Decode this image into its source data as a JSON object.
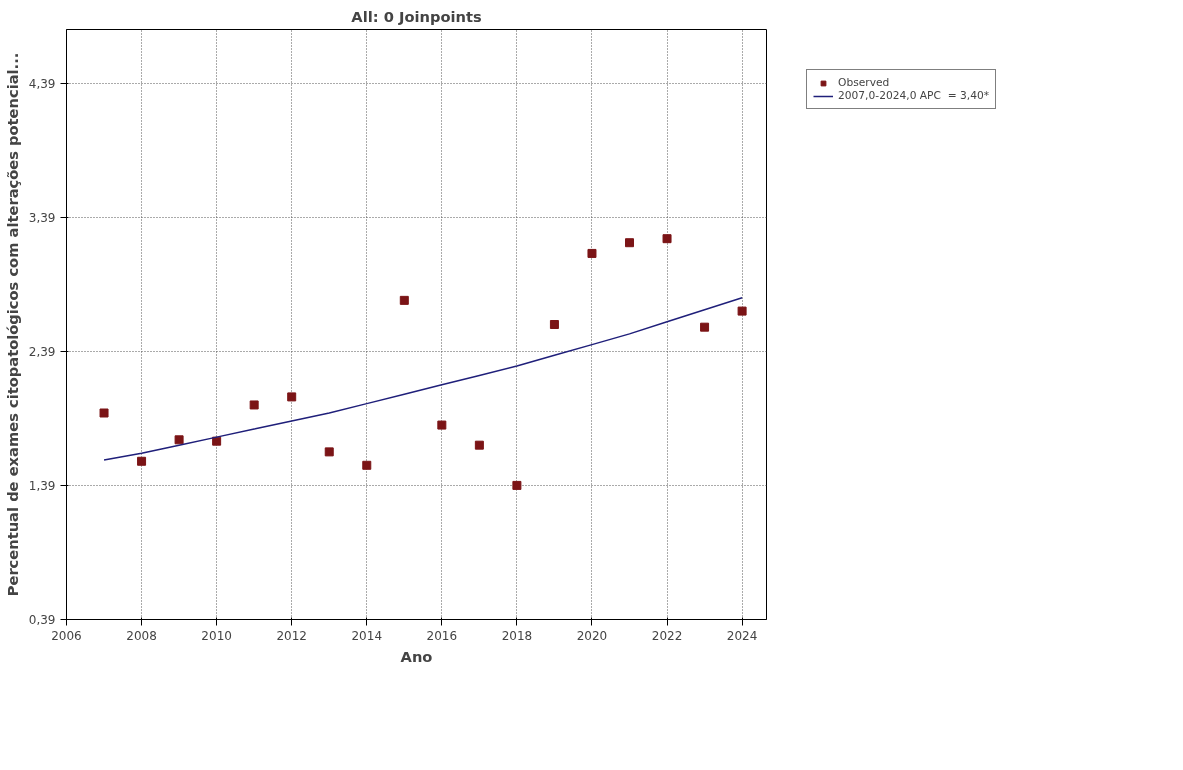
{
  "chart_data": {
    "type": "scatter",
    "title": "All: 0 Joinpoints",
    "xlabel": "Ano",
    "ylabel": "Percentual de exames citopatológicos com alterações potencial...",
    "x": [
      2007,
      2008,
      2009,
      2010,
      2011,
      2012,
      2013,
      2014,
      2015,
      2016,
      2017,
      2018,
      2019,
      2020,
      2021,
      2022,
      2023,
      2024
    ],
    "series": [
      {
        "name": "Observed",
        "color": "#7b1416",
        "marker": "square",
        "values": [
          1.93,
          1.57,
          1.73,
          1.72,
          1.99,
          2.05,
          1.64,
          1.54,
          2.77,
          1.84,
          1.69,
          1.39,
          2.59,
          3.12,
          3.2,
          3.23,
          2.57,
          2.69
        ]
      },
      {
        "name": "2007,0-2024,0 APC  = 3,40*",
        "type": "line",
        "color": "#1f1f7a",
        "line_style": "solid",
        "values": [
          1.58,
          1.63,
          1.69,
          1.75,
          1.81,
          1.87,
          1.93,
          2.0,
          2.07,
          2.14,
          2.21,
          2.28,
          2.36,
          2.44,
          2.52,
          2.61,
          2.7,
          2.79
        ]
      }
    ],
    "xlim": [
      2006,
      2024.65
    ],
    "ylim": [
      0.39,
      4.79
    ],
    "xticks": [
      2006,
      2008,
      2010,
      2012,
      2014,
      2016,
      2018,
      2020,
      2022,
      2024
    ],
    "yticks": [
      {
        "value": 0.39,
        "label": "0,39"
      },
      {
        "value": 1.39,
        "label": "1,39"
      },
      {
        "value": 2.39,
        "label": "2,39"
      },
      {
        "value": 3.39,
        "label": "3,39"
      },
      {
        "value": 4.39,
        "label": "4,39"
      }
    ],
    "grid": true,
    "legend": "top right"
  }
}
